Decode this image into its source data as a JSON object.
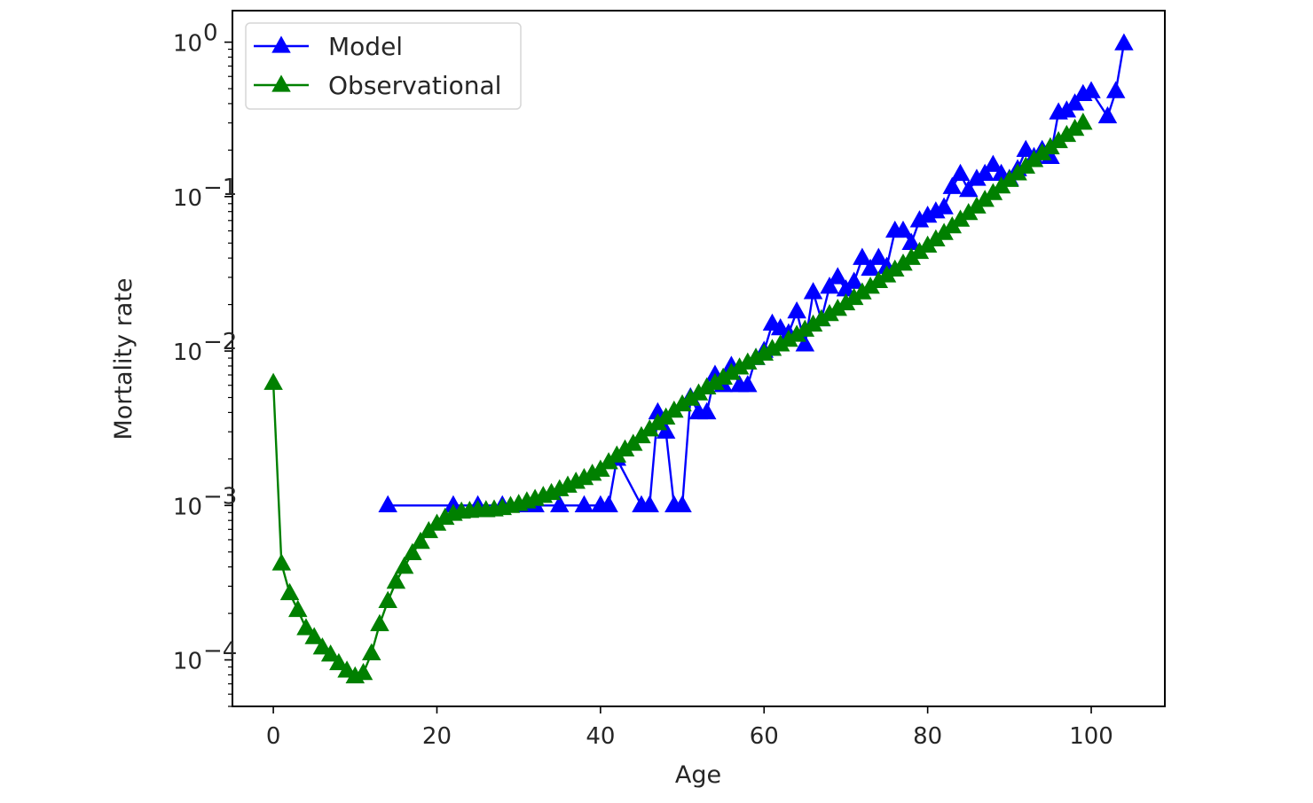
{
  "chart_data": {
    "type": "line",
    "title": "",
    "xlabel": "Age",
    "ylabel": "Mortality rate",
    "yscale": "log",
    "xlim": [
      -5,
      109
    ],
    "ylim": [
      5e-05,
      1.6
    ],
    "x_ticks": [
      0,
      20,
      40,
      60,
      80,
      100
    ],
    "y_ticks": [
      {
        "value": 0.0001,
        "base": "10",
        "exp": "−4"
      },
      {
        "value": 0.001,
        "base": "10",
        "exp": "−3"
      },
      {
        "value": 0.01,
        "base": "10",
        "exp": "−2"
      },
      {
        "value": 0.1,
        "base": "10",
        "exp": "−1"
      },
      {
        "value": 1,
        "base": "10",
        "exp": "0"
      }
    ],
    "grid": false,
    "legend_position": "top-left",
    "series": [
      {
        "name": "Model",
        "color": "#0000ff",
        "marker": "triangle-up",
        "points": [
          [
            14,
            0.001
          ],
          [
            22,
            0.001
          ],
          [
            25,
            0.001
          ],
          [
            28,
            0.001
          ],
          [
            31,
            0.001
          ],
          [
            32,
            0.001
          ],
          [
            35,
            0.001
          ],
          [
            38,
            0.001
          ],
          [
            40,
            0.001
          ],
          [
            41,
            0.001
          ],
          [
            42,
            0.002
          ],
          [
            45,
            0.001
          ],
          [
            46,
            0.001
          ],
          [
            47,
            0.004
          ],
          [
            48,
            0.003
          ],
          [
            49,
            0.001
          ],
          [
            50,
            0.001
          ],
          [
            51,
            0.005
          ],
          [
            52,
            0.004
          ],
          [
            53,
            0.004
          ],
          [
            54,
            0.007
          ],
          [
            55,
            0.006
          ],
          [
            56,
            0.008
          ],
          [
            57,
            0.006
          ],
          [
            58,
            0.006
          ],
          [
            59,
            0.009
          ],
          [
            60,
            0.01
          ],
          [
            61,
            0.015
          ],
          [
            62,
            0.014
          ],
          [
            63,
            0.013
          ],
          [
            64,
            0.018
          ],
          [
            65,
            0.011
          ],
          [
            66,
            0.024
          ],
          [
            67,
            0.016
          ],
          [
            68,
            0.026
          ],
          [
            69,
            0.03
          ],
          [
            70,
            0.025
          ],
          [
            71,
            0.028
          ],
          [
            72,
            0.04
          ],
          [
            73,
            0.034
          ],
          [
            74,
            0.04
          ],
          [
            75,
            0.035
          ],
          [
            76,
            0.06
          ],
          [
            77,
            0.06
          ],
          [
            78,
            0.05
          ],
          [
            79,
            0.07
          ],
          [
            80,
            0.075
          ],
          [
            81,
            0.08
          ],
          [
            82,
            0.085
          ],
          [
            83,
            0.115
          ],
          [
            84,
            0.14
          ],
          [
            85,
            0.11
          ],
          [
            86,
            0.13
          ],
          [
            87,
            0.14
          ],
          [
            88,
            0.16
          ],
          [
            89,
            0.14
          ],
          [
            90,
            0.13
          ],
          [
            91,
            0.15
          ],
          [
            92,
            0.2
          ],
          [
            93,
            0.18
          ],
          [
            94,
            0.2
          ],
          [
            95,
            0.18
          ],
          [
            96,
            0.35
          ],
          [
            97,
            0.36
          ],
          [
            98,
            0.4
          ],
          [
            99,
            0.46
          ],
          [
            100,
            0.48
          ],
          [
            102,
            0.33
          ],
          [
            103,
            0.48
          ],
          [
            104,
            0.98
          ]
        ]
      },
      {
        "name": "Observational",
        "color": "#008000",
        "marker": "triangle-up",
        "points": [
          [
            0,
            0.0062
          ],
          [
            1,
            0.00042
          ],
          [
            2,
            0.00027
          ],
          [
            3,
            0.00021
          ],
          [
            4,
            0.00016
          ],
          [
            5,
            0.00014
          ],
          [
            6,
            0.00012
          ],
          [
            7,
            0.000108
          ],
          [
            8,
            9.5e-05
          ],
          [
            9,
            8.5e-05
          ],
          [
            10,
            7.8e-05
          ],
          [
            11,
            8.2e-05
          ],
          [
            12,
            0.00011
          ],
          [
            13,
            0.00017
          ],
          [
            14,
            0.00024
          ],
          [
            15,
            0.00032
          ],
          [
            16,
            0.0004
          ],
          [
            17,
            0.00049
          ],
          [
            18,
            0.00058
          ],
          [
            19,
            0.00068
          ],
          [
            20,
            0.00076
          ],
          [
            21,
            0.00083
          ],
          [
            22,
            0.00088
          ],
          [
            23,
            0.00091
          ],
          [
            24,
            0.00092
          ],
          [
            25,
            0.00093
          ],
          [
            26,
            0.00093
          ],
          [
            27,
            0.00094
          ],
          [
            28,
            0.00096
          ],
          [
            29,
            0.00099
          ],
          [
            30,
            0.00102
          ],
          [
            31,
            0.00106
          ],
          [
            32,
            0.0011
          ],
          [
            33,
            0.00115
          ],
          [
            34,
            0.0012
          ],
          [
            35,
            0.00127
          ],
          [
            36,
            0.00134
          ],
          [
            37,
            0.00142
          ],
          [
            38,
            0.0015
          ],
          [
            39,
            0.0016
          ],
          [
            40,
            0.0017
          ],
          [
            41,
            0.0019
          ],
          [
            42,
            0.0021
          ],
          [
            43,
            0.0023
          ],
          [
            44,
            0.0025
          ],
          [
            45,
            0.0028
          ],
          [
            46,
            0.0031
          ],
          [
            47,
            0.0034
          ],
          [
            48,
            0.0037
          ],
          [
            49,
            0.0041
          ],
          [
            50,
            0.0045
          ],
          [
            51,
            0.0049
          ],
          [
            52,
            0.0053
          ],
          [
            53,
            0.0058
          ],
          [
            54,
            0.0062
          ],
          [
            55,
            0.0067
          ],
          [
            56,
            0.0072
          ],
          [
            57,
            0.0078
          ],
          [
            58,
            0.0084
          ],
          [
            59,
            0.009
          ],
          [
            60,
            0.0096
          ],
          [
            61,
            0.0103
          ],
          [
            62,
            0.011
          ],
          [
            63,
            0.0118
          ],
          [
            64,
            0.0127
          ],
          [
            65,
            0.0137
          ],
          [
            66,
            0.0148
          ],
          [
            67,
            0.016
          ],
          [
            68,
            0.0173
          ],
          [
            69,
            0.0187
          ],
          [
            70,
            0.0203
          ],
          [
            71,
            0.022
          ],
          [
            72,
            0.0239
          ],
          [
            73,
            0.026
          ],
          [
            74,
            0.0283
          ],
          [
            75,
            0.0308
          ],
          [
            76,
            0.0336
          ],
          [
            77,
            0.0367
          ],
          [
            78,
            0.04
          ],
          [
            79,
            0.0437
          ],
          [
            80,
            0.048
          ],
          [
            81,
            0.0527
          ],
          [
            82,
            0.058
          ],
          [
            83,
            0.064
          ],
          [
            84,
            0.0707
          ],
          [
            85,
            0.078
          ],
          [
            86,
            0.086
          ],
          [
            87,
            0.095
          ],
          [
            88,
            0.105
          ],
          [
            89,
            0.116
          ],
          [
            90,
            0.128
          ],
          [
            91,
            0.141
          ],
          [
            92,
            0.156
          ],
          [
            93,
            0.172
          ],
          [
            94,
            0.19
          ],
          [
            95,
            0.208
          ],
          [
            96,
            0.228
          ],
          [
            97,
            0.25
          ],
          [
            98,
            0.274
          ],
          [
            99,
            0.3
          ]
        ]
      }
    ]
  }
}
